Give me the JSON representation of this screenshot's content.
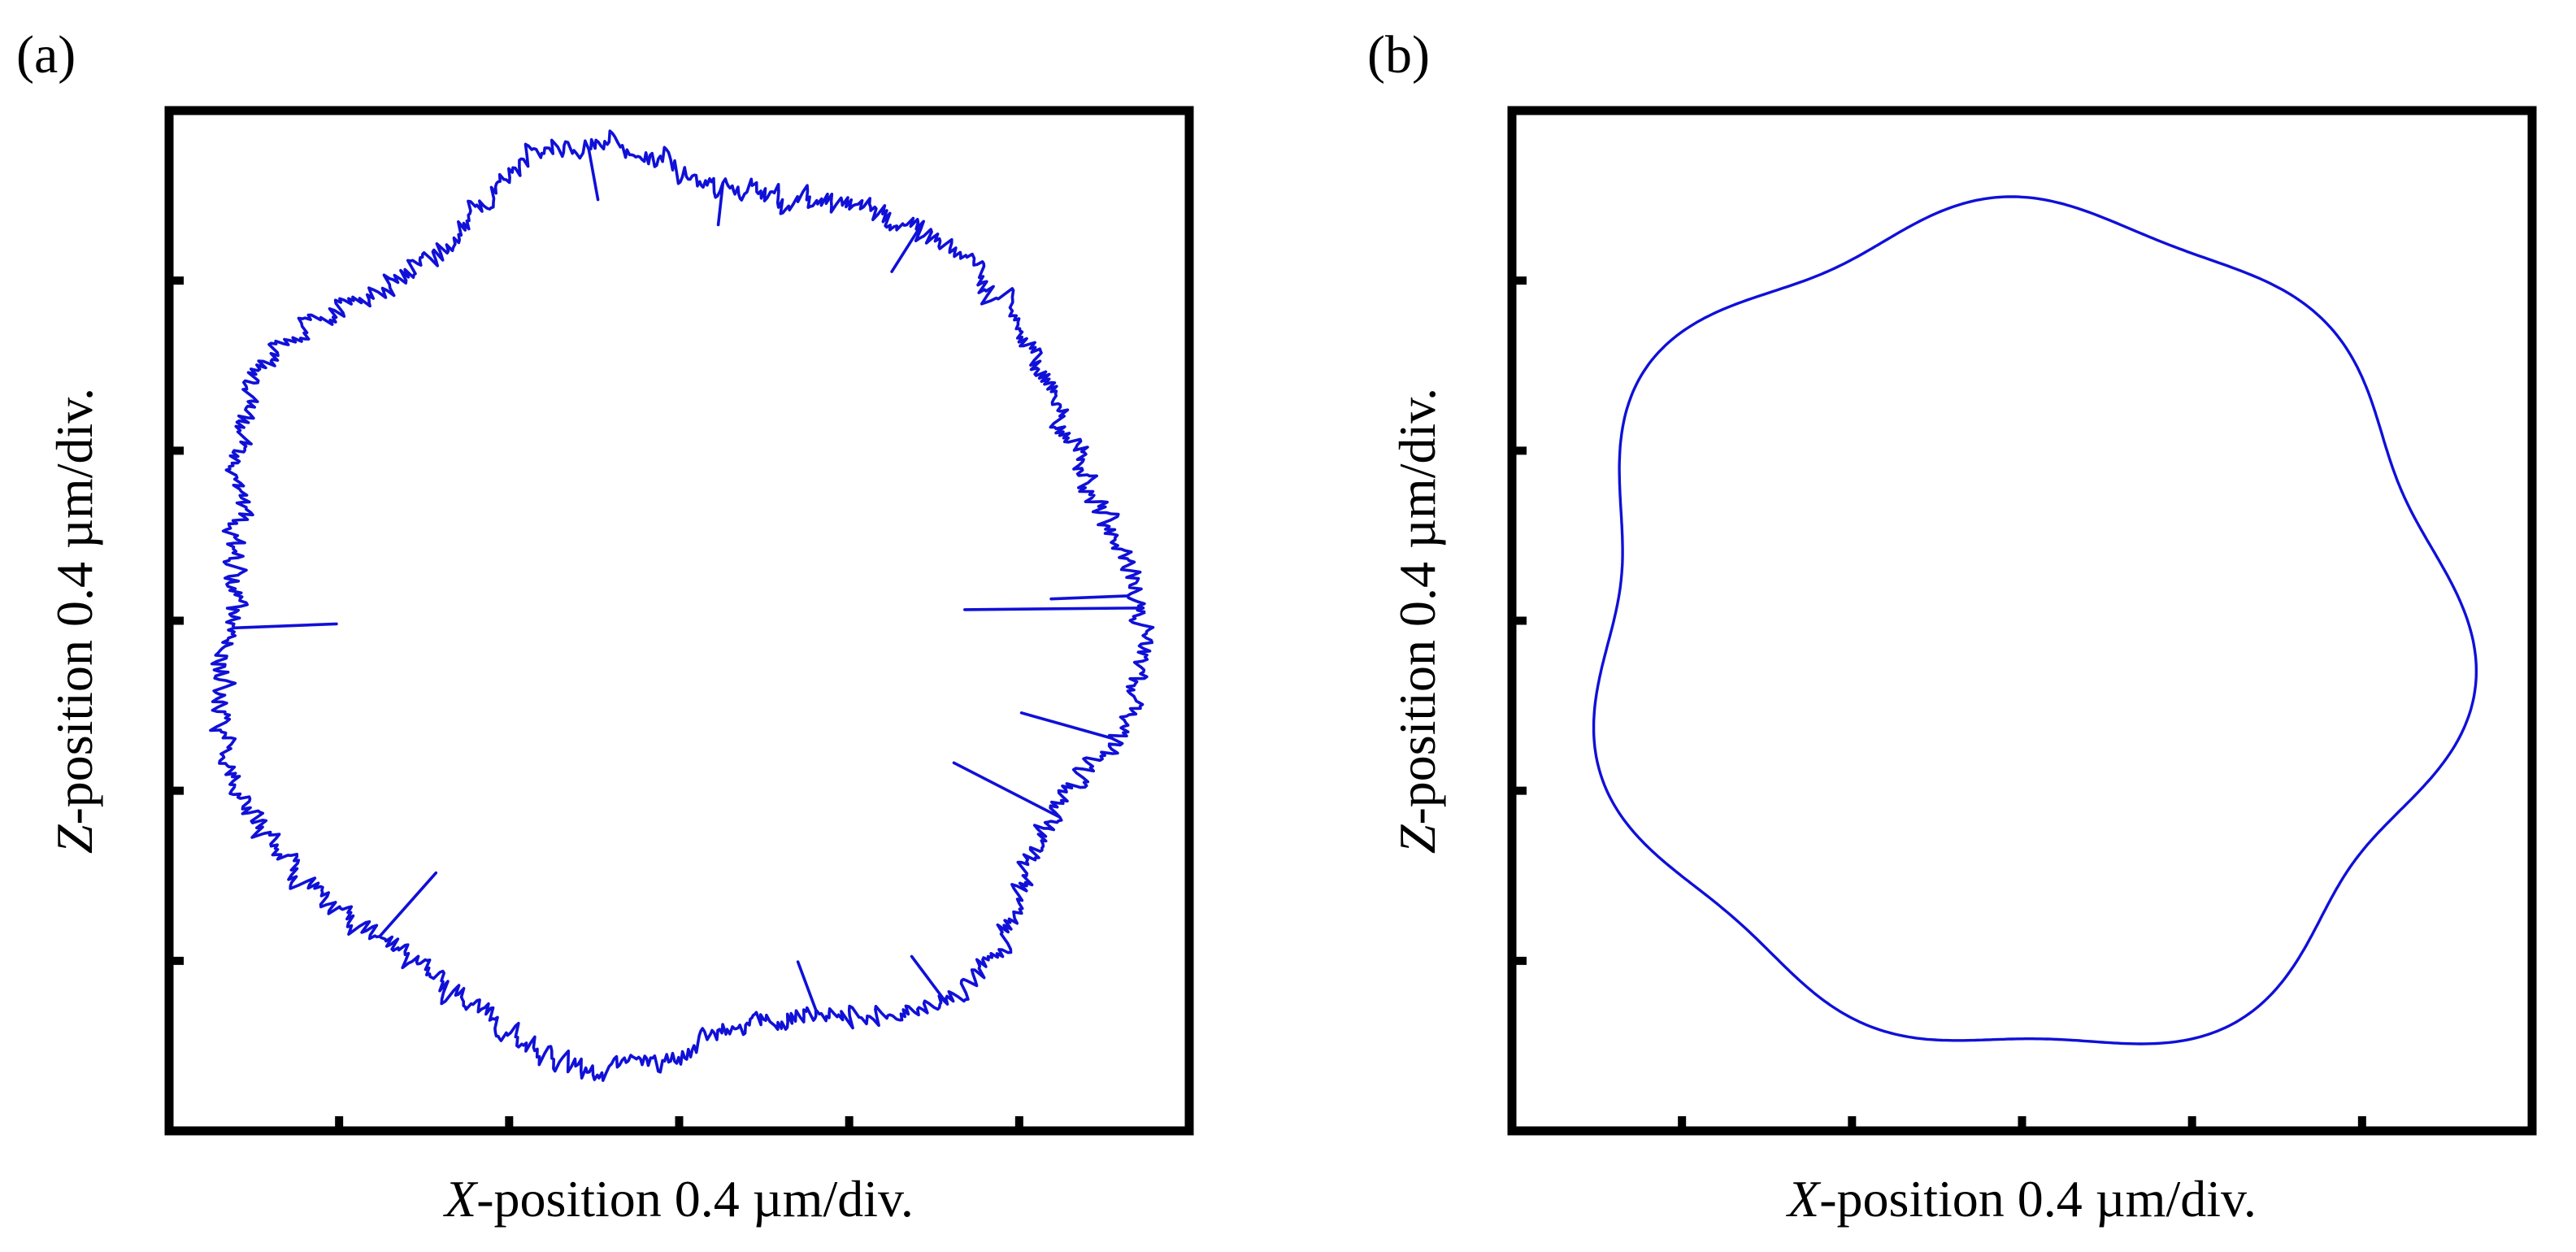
{
  "chart_data": [
    {
      "type": "line",
      "panel_label": "(a)",
      "description_kind": "measured closed trajectory (polar plot of radius vs angle)",
      "xlabel_var": "X",
      "xlabel_rest": "-position 0.4 µm/div.",
      "ylabel_var": "Z",
      "ylabel_rest": "-position 0.4 µm/div.",
      "x_unit_per_div": 0.4,
      "y_unit_per_div": 0.4,
      "divisions": 6,
      "xlim_div": [
        -3,
        3
      ],
      "ylim_div": [
        -3,
        3
      ],
      "tick_labels_shown": false,
      "series_color": "#1010d8",
      "center_div": [
        -0.05,
        0.05
      ],
      "mean_radius_div": 2.65,
      "harmonics": [
        {
          "n": 2,
          "amp": 0.03,
          "phase": 0.6
        },
        {
          "n": 3,
          "amp": 0.02,
          "phase": 1.3
        },
        {
          "n": 7,
          "amp": 0.11,
          "phase": 0.2
        },
        {
          "n": 9,
          "amp": 0.04,
          "phase": 2.1
        }
      ],
      "noise_amp_div": 0.07,
      "spikes": [
        {
          "angle_deg": 0.5,
          "depth_div": 1.05
        },
        {
          "angle_deg": 2.0,
          "depth_div": 0.45
        },
        {
          "angle_deg": 344,
          "depth_div": 0.55
        },
        {
          "angle_deg": 332,
          "depth_div": 0.7
        },
        {
          "angle_deg": 228,
          "depth_div": 0.5
        },
        {
          "angle_deg": 182,
          "depth_div": 0.6
        },
        {
          "angle_deg": 57,
          "depth_div": 0.35
        },
        {
          "angle_deg": 83,
          "depth_div": 0.25
        },
        {
          "angle_deg": 100,
          "depth_div": 0.3
        },
        {
          "angle_deg": 290,
          "depth_div": 0.3
        },
        {
          "angle_deg": 305,
          "depth_div": 0.35
        }
      ],
      "samples": 1400
    },
    {
      "type": "line",
      "panel_label": "(b)",
      "description_kind": "smoothed closed trajectory (polar plot of radius vs angle)",
      "xlabel_var": "X",
      "xlabel_rest": "-position 0.4 µm/div.",
      "ylabel_var": "Z",
      "ylabel_rest": "-position 0.4 µm/div.",
      "x_unit_per_div": 0.4,
      "y_unit_per_div": 0.4,
      "divisions": 6,
      "xlim_div": [
        -3,
        3
      ],
      "ylim_div": [
        -3,
        3
      ],
      "tick_labels_shown": false,
      "series_color": "#1010d8",
      "center_div": [
        0.0,
        -0.05
      ],
      "mean_radius_div": 2.5,
      "harmonics": [
        {
          "n": 2,
          "amp": 0.04,
          "phase": 0.9
        },
        {
          "n": 5,
          "amp": 0.06,
          "phase": 0.3
        },
        {
          "n": 7,
          "amp": 0.1,
          "phase": 1.0
        }
      ],
      "noise_amp_div": 0,
      "spikes": [],
      "samples": 720
    }
  ]
}
